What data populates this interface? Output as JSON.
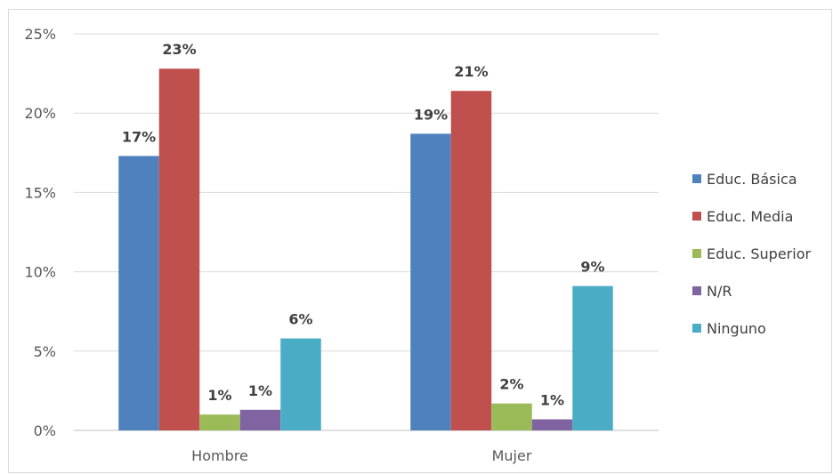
{
  "chart_data": {
    "type": "bar",
    "categories": [
      "Hombre",
      "Mujer"
    ],
    "series": [
      {
        "name": "Educ. Básica",
        "values": [
          17.3,
          18.7
        ],
        "labels": [
          "17%",
          "19%"
        ],
        "color": "#4f81bd"
      },
      {
        "name": "Educ. Media",
        "values": [
          22.8,
          21.4
        ],
        "labels": [
          "23%",
          "21%"
        ],
        "color": "#c0504d"
      },
      {
        "name": "Educ. Superior",
        "values": [
          1.0,
          1.7
        ],
        "labels": [
          "1%",
          "2%"
        ],
        "color": "#9bbb59"
      },
      {
        "name": "N/R",
        "values": [
          1.3,
          0.7
        ],
        "labels": [
          "1%",
          "1%"
        ],
        "color": "#8064a2"
      },
      {
        "name": "Ninguno",
        "values": [
          5.8,
          9.1
        ],
        "labels": [
          "6%",
          "9%"
        ],
        "color": "#4bacc6"
      }
    ],
    "yticks": [
      "0%",
      "5%",
      "10%",
      "15%",
      "20%",
      "25%"
    ],
    "ylim": [
      0,
      25
    ],
    "grid": true,
    "legend_position": "right"
  }
}
